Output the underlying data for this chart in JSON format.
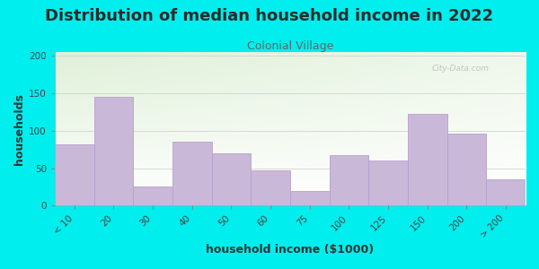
{
  "title": "Distribution of median household income in 2022",
  "subtitle": "Colonial Village",
  "xlabel": "household income ($1000)",
  "ylabel": "households",
  "background_color": "#00EEEE",
  "plot_bg_color_topleft": "#dff0d8",
  "plot_bg_color_right": "#f0f8f0",
  "plot_bg_color_bottom": "#ffffff",
  "bar_color": "#c9b8d8",
  "bar_edge_color": "#b8a0cc",
  "categories": [
    "< 10",
    "20",
    "30",
    "40",
    "50",
    "60",
    "75",
    "100",
    "125",
    "150",
    "200",
    "> 200"
  ],
  "values": [
    82,
    145,
    25,
    85,
    70,
    47,
    20,
    68,
    60,
    123,
    96,
    35
  ],
  "ylim": [
    0,
    205
  ],
  "yticks": [
    0,
    50,
    100,
    150,
    200
  ],
  "title_fontsize": 13,
  "subtitle_fontsize": 9,
  "axis_label_fontsize": 9,
  "tick_fontsize": 7.5,
  "watermark": "City-Data.com"
}
